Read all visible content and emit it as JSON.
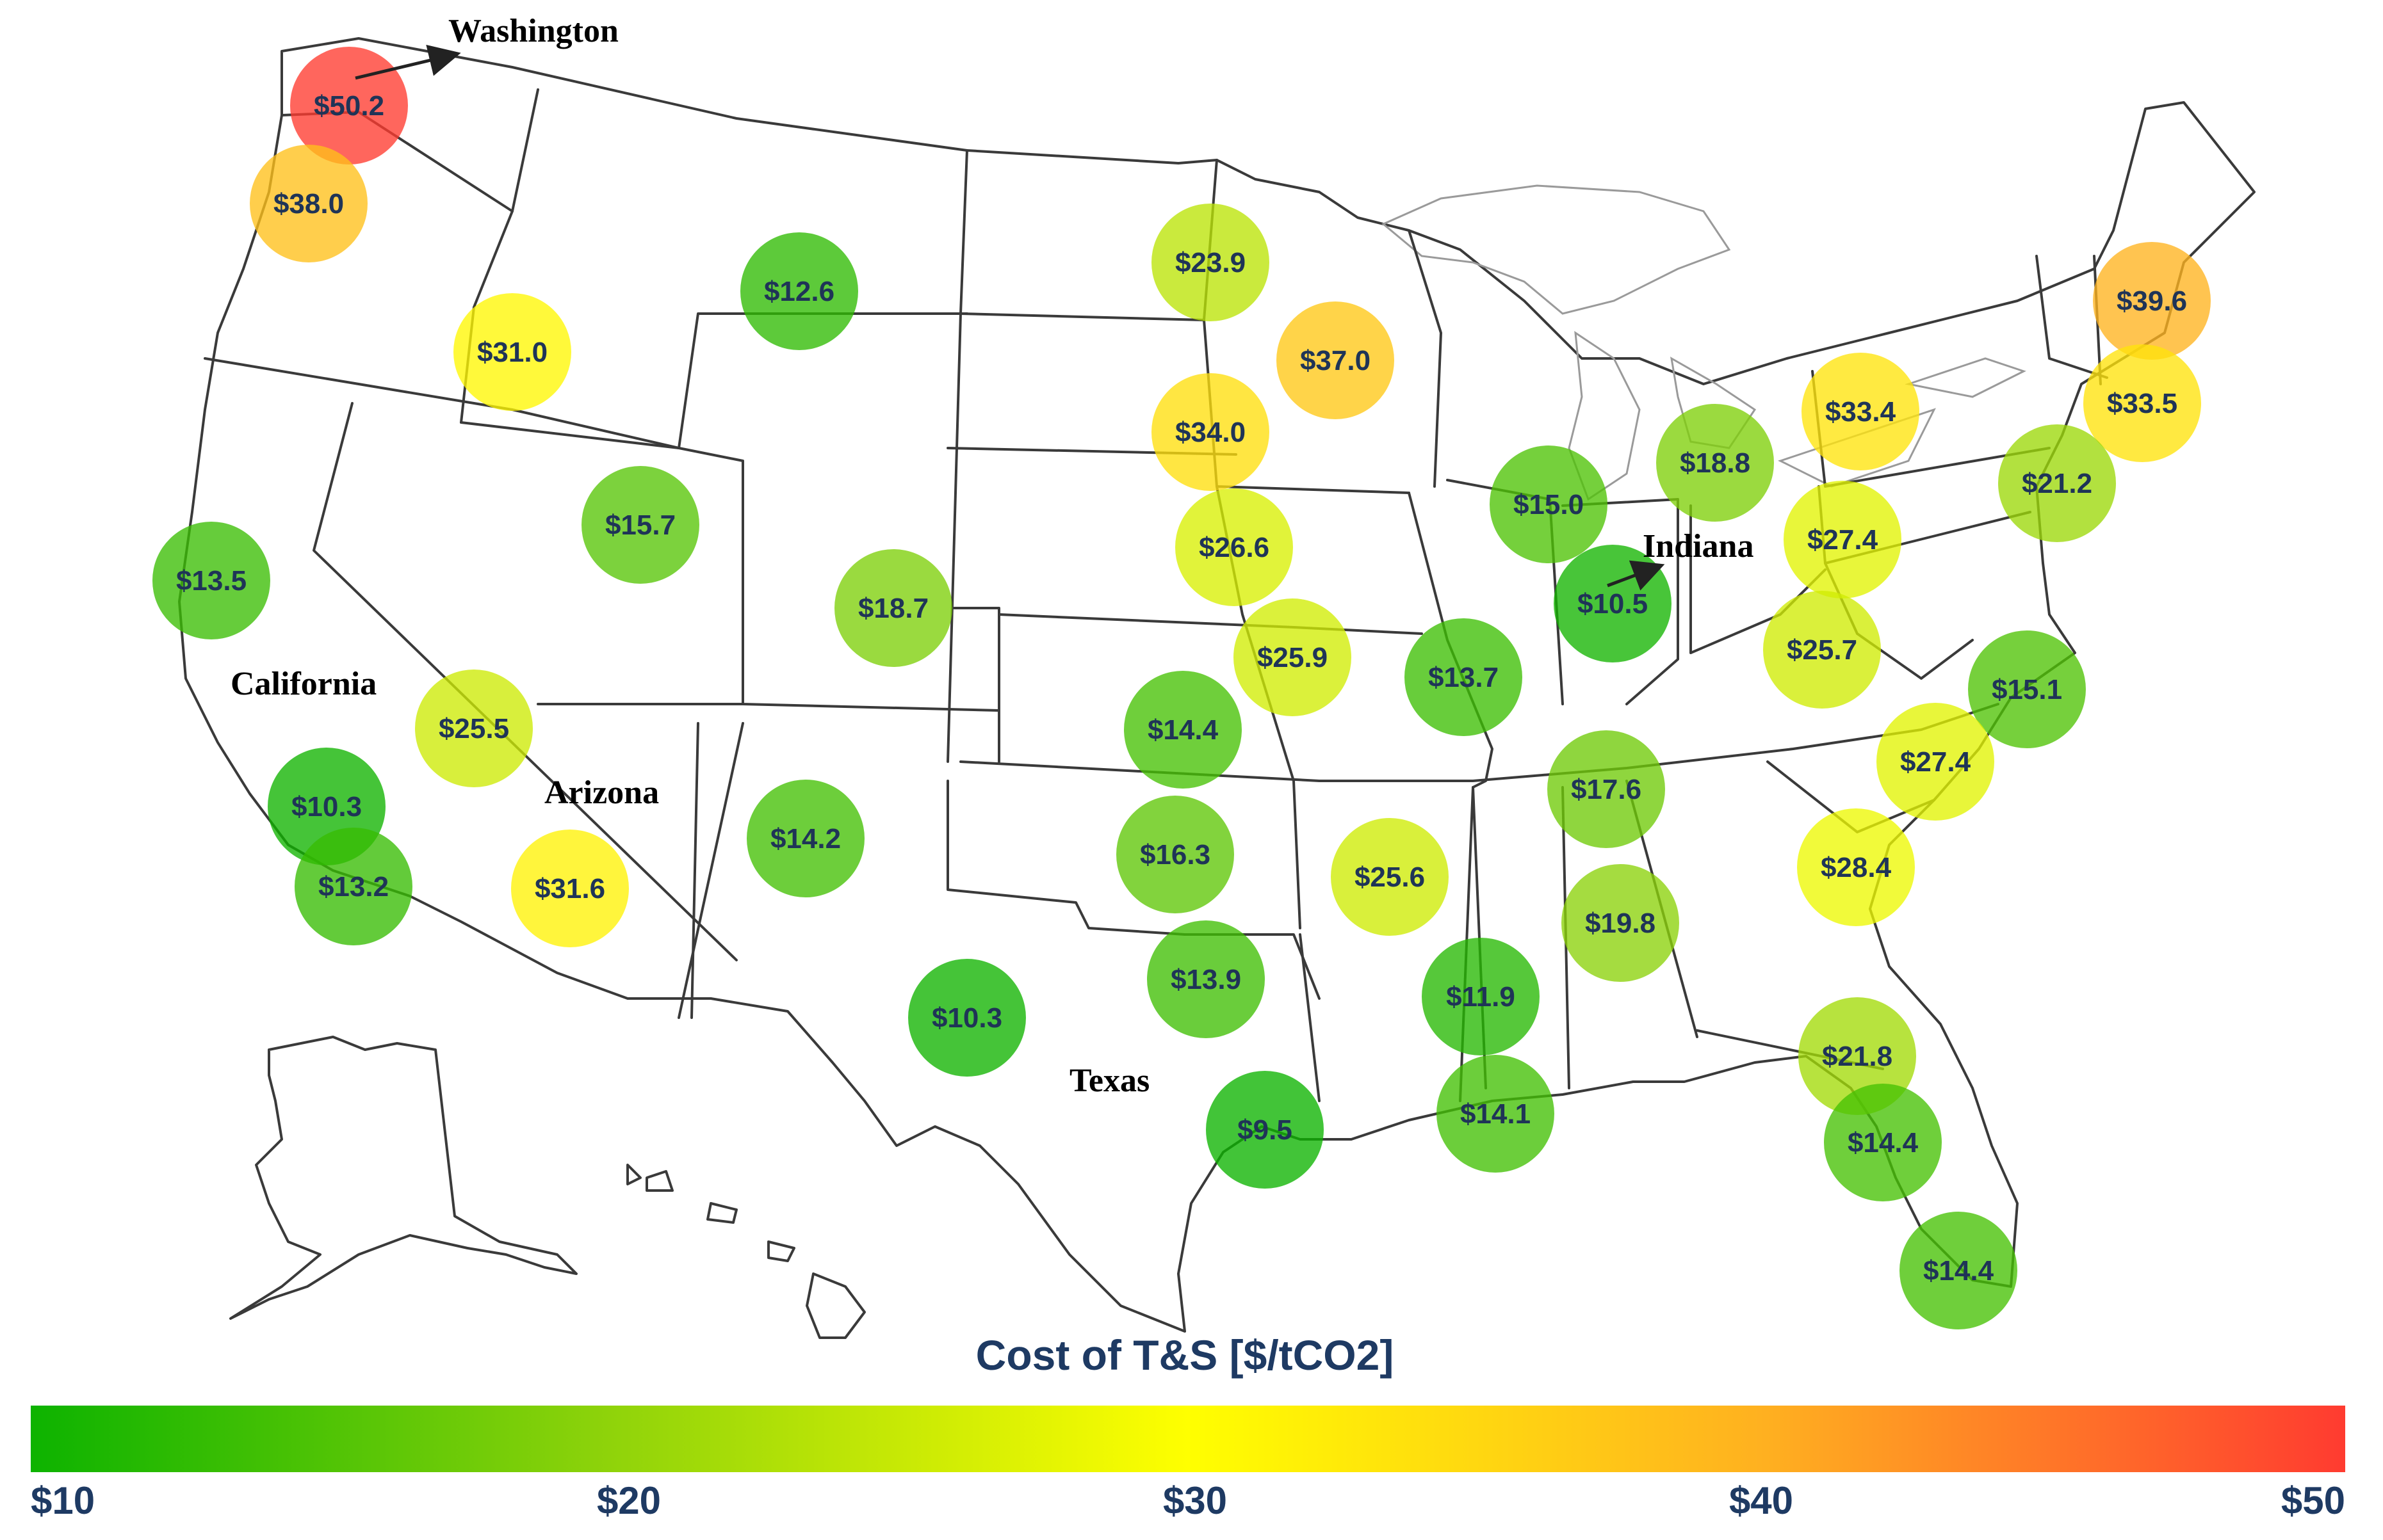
{
  "legend": {
    "title": "Cost of T&S [$/tCO2]",
    "ticks": [
      "$10",
      "$20",
      "$30",
      "$40",
      "$50"
    ],
    "min": 10,
    "max": 50,
    "gradient_colors": [
      "#0db300",
      "#8fd30a",
      "#ffff00",
      "#ffb020",
      "#ff3b30"
    ]
  },
  "state_names": {
    "washington": "Washington",
    "california": "California",
    "arizona": "Arizona",
    "texas": "Texas",
    "indiana": "Indiana"
  },
  "costs": [
    {
      "label": "$50.2",
      "value": 50.2
    },
    {
      "label": "$38.0",
      "value": 38.0
    },
    {
      "label": "$31.0",
      "value": 31.0
    },
    {
      "label": "$12.6",
      "value": 12.6
    },
    {
      "label": "$23.9",
      "value": 23.9
    },
    {
      "label": "$37.0",
      "value": 37.0
    },
    {
      "label": "$34.0",
      "value": 34.0
    },
    {
      "label": "$39.6",
      "value": 39.6
    },
    {
      "label": "$33.4",
      "value": 33.4
    },
    {
      "label": "$33.5",
      "value": 33.5
    },
    {
      "label": "$18.8",
      "value": 18.8
    },
    {
      "label": "$15.0",
      "value": 15.0
    },
    {
      "label": "$21.2",
      "value": 21.2
    },
    {
      "label": "$15.7",
      "value": 15.7
    },
    {
      "label": "$13.5",
      "value": 13.5
    },
    {
      "label": "$26.6",
      "value": 26.6
    },
    {
      "label": "$27.4",
      "value": 27.4
    },
    {
      "label": "$18.7",
      "value": 18.7
    },
    {
      "label": "$10.5",
      "value": 10.5
    },
    {
      "label": "$25.9",
      "value": 25.9
    },
    {
      "label": "$25.7",
      "value": 25.7
    },
    {
      "label": "$13.7",
      "value": 13.7
    },
    {
      "label": "$15.1",
      "value": 15.1
    },
    {
      "label": "$25.5",
      "value": 25.5
    },
    {
      "label": "$14.4",
      "value": 14.4
    },
    {
      "label": "$27.4",
      "value": 27.4
    },
    {
      "label": "$10.3",
      "value": 10.3
    },
    {
      "label": "$17.6",
      "value": 17.6
    },
    {
      "label": "$14.2",
      "value": 14.2
    },
    {
      "label": "$16.3",
      "value": 16.3
    },
    {
      "label": "$13.2",
      "value": 13.2
    },
    {
      "label": "$31.6",
      "value": 31.6
    },
    {
      "label": "$25.6",
      "value": 25.6
    },
    {
      "label": "$28.4",
      "value": 28.4
    },
    {
      "label": "$19.8",
      "value": 19.8
    },
    {
      "label": "$13.9",
      "value": 13.9
    },
    {
      "label": "$10.3",
      "value": 10.3
    },
    {
      "label": "$11.9",
      "value": 11.9
    },
    {
      "label": "$21.8",
      "value": 21.8
    },
    {
      "label": "$9.5",
      "value": 9.5
    },
    {
      "label": "$14.1",
      "value": 14.1
    },
    {
      "label": "$14.4",
      "value": 14.4
    },
    {
      "label": "$14.4",
      "value": 14.4
    }
  ]
}
